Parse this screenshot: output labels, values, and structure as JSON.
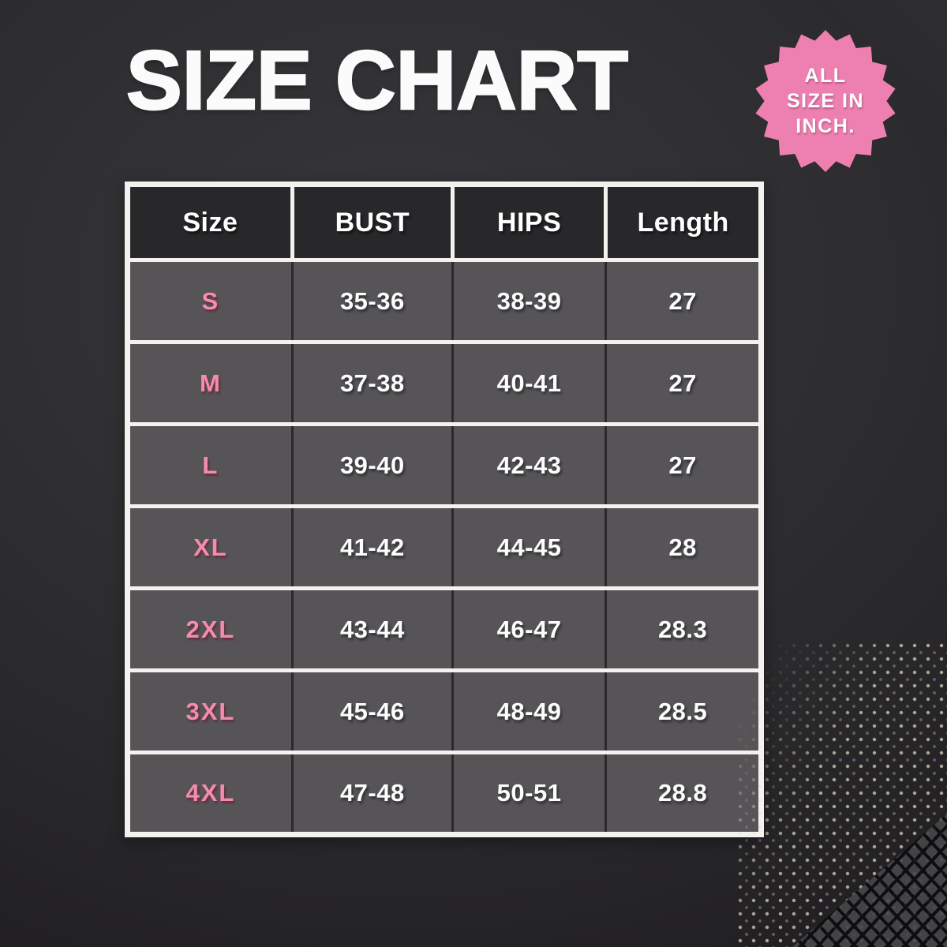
{
  "header": {
    "title": "SIZE CHART"
  },
  "badge": {
    "line1": "ALL",
    "line2": "SIZE IN",
    "line3": "INCH.",
    "full_text": "ALL SIZE IN INCH."
  },
  "chart_data": {
    "type": "table",
    "title": "SIZE CHART",
    "units_note": "ALL SIZE IN INCH.",
    "columns": [
      "Size",
      "BUST",
      "HIPS",
      "Length"
    ],
    "rows": [
      [
        "S",
        "35-36",
        "38-39",
        "27"
      ],
      [
        "M",
        "37-38",
        "40-41",
        "27"
      ],
      [
        "L",
        "39-40",
        "42-43",
        "27"
      ],
      [
        "XL",
        "41-42",
        "44-45",
        "28"
      ],
      [
        "2XL",
        "43-44",
        "46-47",
        "28.3"
      ],
      [
        "3XL",
        "45-46",
        "48-49",
        "28.5"
      ],
      [
        "4XL",
        "47-48",
        "50-51",
        "28.8"
      ]
    ],
    "layout_hints": {
      "header_background": "#28272a",
      "cell_background": "#565457",
      "row_divider": "white",
      "column_divider": "dark"
    }
  },
  "colors": {
    "page_background": "#2f2e31",
    "accent_pink": "#ee7fb1",
    "size_label_pink": "#f48cab",
    "table_border_white": "#f4f2ef",
    "header_cell": "#28272a",
    "data_cell": "#565457",
    "text_white": "#ffffff"
  }
}
